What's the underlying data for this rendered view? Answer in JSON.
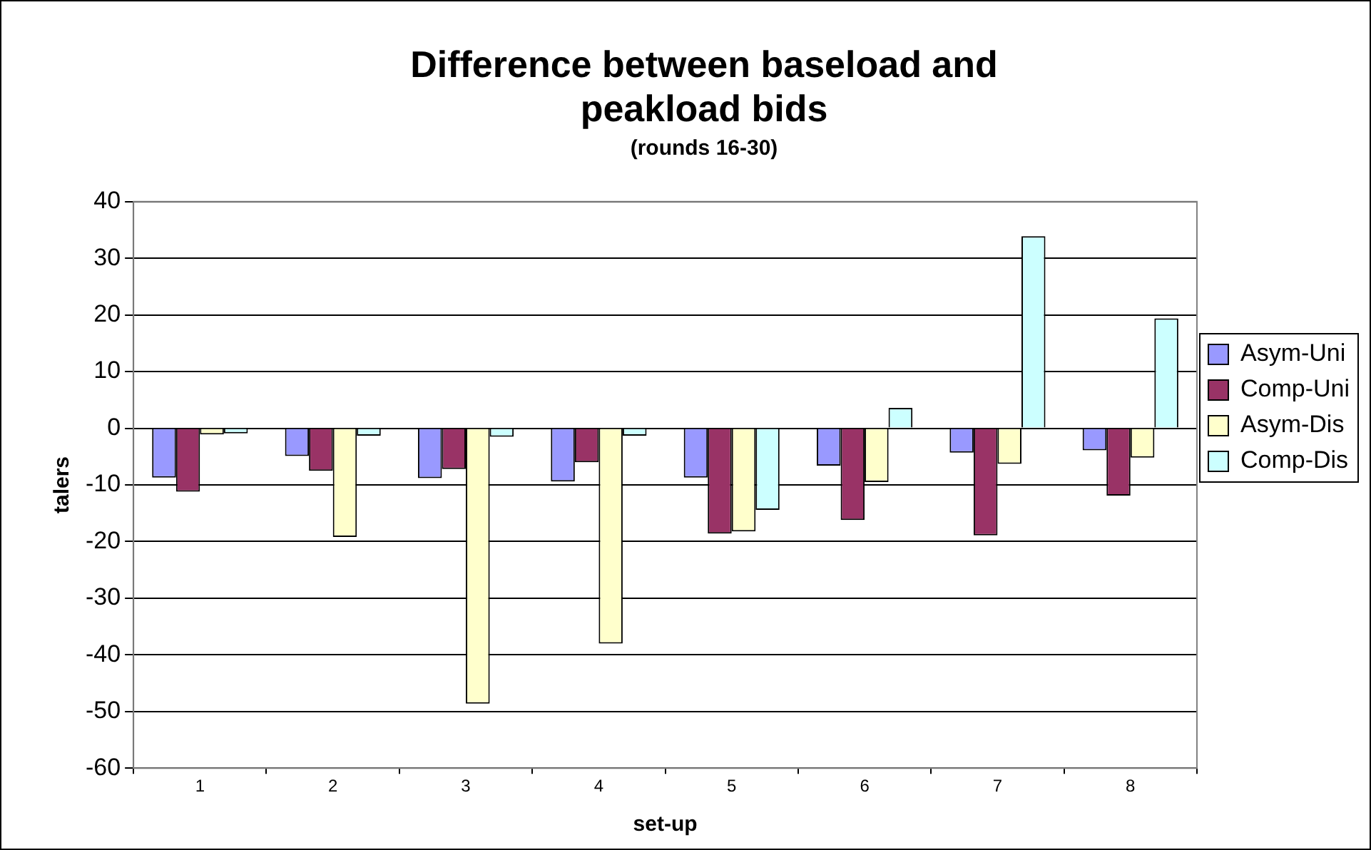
{
  "chart_data": {
    "type": "bar",
    "title": "Difference between baseload and peakload bids",
    "subtitle": "(rounds 16-30)",
    "xlabel": "set-up",
    "ylabel": "talers",
    "categories": [
      "1",
      "2",
      "3",
      "4",
      "5",
      "6",
      "7",
      "8"
    ],
    "series": [
      {
        "name": "Asym-Uni",
        "color": "#9999ff",
        "values": [
          -8.7,
          -4.9,
          -8.8,
          -9.4,
          -8.7,
          -6.6,
          -4.3,
          -3.9
        ]
      },
      {
        "name": "Comp-Uni",
        "color": "#993366",
        "values": [
          -11.2,
          -7.5,
          -7.2,
          -6.0,
          -18.6,
          -16.2,
          -18.9,
          -11.9
        ]
      },
      {
        "name": "Asym-Dis",
        "color": "#ffffcc",
        "values": [
          -1.1,
          -19.2,
          -48.6,
          -38.0,
          -18.2,
          -9.5,
          -6.3,
          -5.2
        ]
      },
      {
        "name": "Comp-Dis",
        "color": "#ccffff",
        "values": [
          -0.9,
          -1.3,
          -1.5,
          -1.3,
          -14.4,
          3.6,
          33.9,
          19.4
        ]
      }
    ],
    "ylim": [
      -60,
      40
    ],
    "yticks": [
      -60,
      -50,
      -40,
      -30,
      -20,
      -10,
      0,
      10,
      20,
      30,
      40
    ],
    "grid": "y",
    "legend": "right"
  }
}
